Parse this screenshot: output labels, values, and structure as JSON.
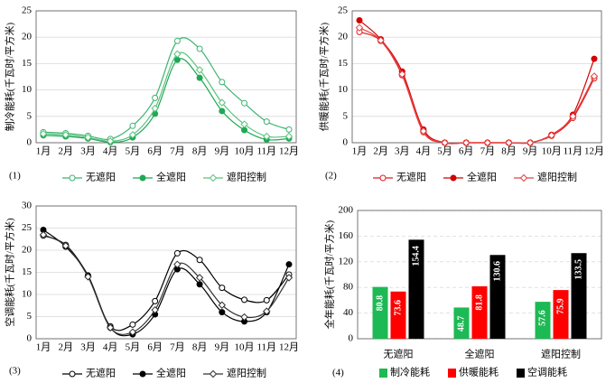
{
  "chart_data": [
    {
      "type": "line",
      "label": "(1)",
      "ylabel": "制冷能耗(千瓦时/平方米)",
      "categories": [
        "1月",
        "2月",
        "3月",
        "4月",
        "5月",
        "6月",
        "7月",
        "8月",
        "9月",
        "10月",
        "11月",
        "12月"
      ],
      "ylim": [
        0,
        25
      ],
      "yticks": [
        0,
        5,
        10,
        15,
        20,
        25
      ],
      "grid": true,
      "series": [
        {
          "name": "无遮阳",
          "color": "#3cb371",
          "marker": "circle-open",
          "values": [
            2.0,
            1.8,
            1.3,
            0.7,
            3.2,
            8.5,
            19.3,
            17.8,
            11.5,
            7.5,
            4.0,
            2.5
          ]
        },
        {
          "name": "全遮阳",
          "color": "#1fa855",
          "marker": "circle",
          "values": [
            1.4,
            1.2,
            0.8,
            0.1,
            1.0,
            5.5,
            15.7,
            12.3,
            6.0,
            2.4,
            0.6,
            0.8
          ]
        },
        {
          "name": "遮阳控制",
          "color": "#5ac47d",
          "marker": "diamond",
          "values": [
            1.7,
            1.5,
            1.0,
            0.3,
            1.5,
            6.5,
            16.8,
            13.8,
            7.6,
            3.5,
            1.2,
            1.2
          ]
        }
      ]
    },
    {
      "type": "line",
      "label": "(2)",
      "ylabel": "供暖能耗(千瓦时/平方米)",
      "categories": [
        "1月",
        "2月",
        "3月",
        "4月",
        "5月",
        "6月",
        "7月",
        "8月",
        "9月",
        "10月",
        "11月",
        "12月"
      ],
      "ylim": [
        0,
        25
      ],
      "yticks": [
        0,
        5,
        10,
        15,
        20,
        25
      ],
      "grid": true,
      "series": [
        {
          "name": "无遮阳",
          "color": "#e31a1c",
          "marker": "circle-open",
          "values": [
            21.0,
            19.3,
            12.8,
            2.0,
            0,
            0,
            0,
            0,
            0,
            1.3,
            4.7,
            12.2
          ]
        },
        {
          "name": "全遮阳",
          "color": "#d40000",
          "marker": "circle",
          "values": [
            23.2,
            19.6,
            13.5,
            2.5,
            0,
            0,
            0,
            0,
            0,
            1.5,
            5.3,
            15.9
          ]
        },
        {
          "name": "遮阳控制",
          "color": "#e84040",
          "marker": "diamond",
          "values": [
            21.8,
            19.4,
            13.0,
            2.2,
            0,
            0,
            0,
            0,
            0,
            1.4,
            5.0,
            12.6
          ]
        }
      ]
    },
    {
      "type": "line",
      "label": "(3)",
      "ylabel": "空调能耗(千瓦时/平方米)",
      "categories": [
        "1月",
        "2月",
        "3月",
        "4月",
        "5月",
        "6月",
        "7月",
        "8月",
        "9月",
        "10月",
        "11月",
        "12月"
      ],
      "ylim": [
        0,
        30
      ],
      "yticks": [
        0,
        5,
        10,
        15,
        20,
        25,
        30
      ],
      "grid": true,
      "series": [
        {
          "name": "无遮阳",
          "color": "#000000",
          "marker": "circle-open",
          "values": [
            23.3,
            21.2,
            14.2,
            2.8,
            3.2,
            8.5,
            19.3,
            17.8,
            11.5,
            8.8,
            8.7,
            14.5
          ]
        },
        {
          "name": "全遮阳",
          "color": "#000000",
          "marker": "circle",
          "values": [
            24.6,
            20.8,
            14.3,
            2.5,
            1.0,
            5.5,
            15.7,
            12.3,
            6.0,
            3.9,
            6.0,
            16.8
          ]
        },
        {
          "name": "遮阳控制",
          "color": "#333333",
          "marker": "diamond",
          "values": [
            23.5,
            21.0,
            14.0,
            2.5,
            1.5,
            6.5,
            16.8,
            13.8,
            7.6,
            4.9,
            6.2,
            13.8
          ]
        }
      ]
    },
    {
      "type": "bar",
      "label": "(4)",
      "ylabel": "全年能耗(千瓦时/平方米)",
      "categories": [
        "无遮阳",
        "全遮阳",
        "遮阳控制"
      ],
      "ylim": [
        0,
        200
      ],
      "yticks": [
        0,
        40,
        80,
        120,
        160,
        200
      ],
      "grid": true,
      "series": [
        {
          "name": "制冷能耗",
          "color": "#1db954",
          "values": [
            80.8,
            48.7,
            57.6
          ]
        },
        {
          "name": "供暖能耗",
          "color": "#ff0000",
          "values": [
            73.6,
            81.8,
            75.9
          ]
        },
        {
          "name": "空调能耗",
          "color": "#000000",
          "values": [
            154.4,
            130.6,
            133.5
          ]
        }
      ]
    }
  ]
}
